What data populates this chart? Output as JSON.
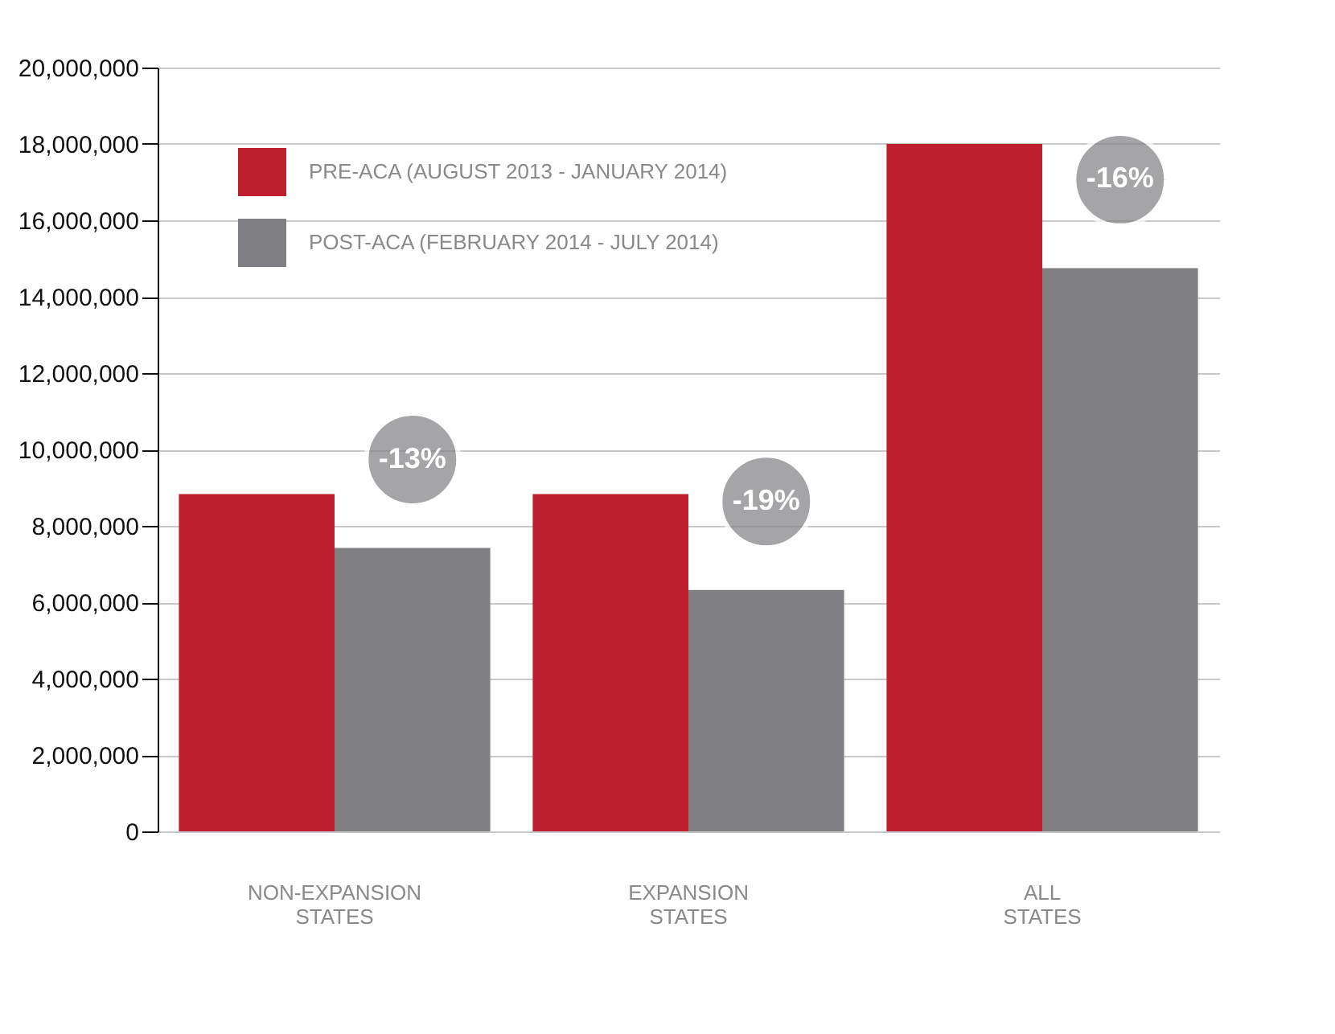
{
  "chart_data": {
    "type": "bar",
    "categories": [
      "NON-EXPANSION STATES",
      "EXPANSION STATES",
      "ALL STATES"
    ],
    "series": [
      {
        "name": "PRE-ACA (AUGUST 2013 - JANUARY 2014)",
        "color": "#be1e2d",
        "values": [
          8830000,
          8830000,
          18000000
        ]
      },
      {
        "name": "POST-ACA (FEBRUARY 2014 - JULY 2014)",
        "color": "#808084",
        "values": [
          7420000,
          6320000,
          14750000
        ]
      }
    ],
    "ylim": [
      0,
      20000000
    ],
    "yticks": [
      0,
      {
        "value": 2000000,
        "label": "2,000,000"
      },
      {
        "value": 4000000,
        "label": "4,000,000"
      },
      {
        "value": 6000000,
        "label": "6,000,000"
      },
      {
        "value": 8000000,
        "label": "8,000,000"
      },
      {
        "value": 10000000,
        "label": "10,000,000"
      },
      {
        "value": 12000000,
        "label": "12,000,000"
      },
      {
        "value": 14000000,
        "label": "14,000,000"
      },
      {
        "value": 16000000,
        "label": "16,000,000"
      },
      {
        "value": 18000000,
        "label": "18,000,000"
      },
      {
        "value": 20000000,
        "label": "20,000,000"
      }
    ],
    "grid": "y",
    "legend": "top left",
    "annotations": [
      "-13%",
      "-19%",
      "-16%"
    ]
  }
}
